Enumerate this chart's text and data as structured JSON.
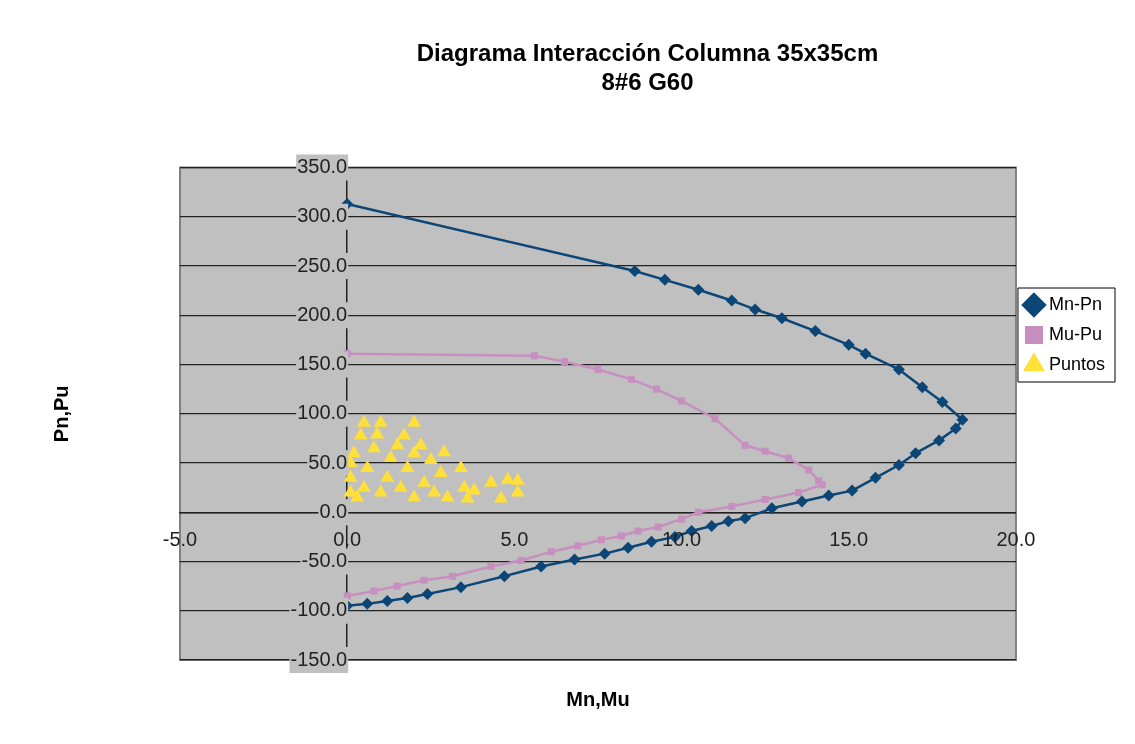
{
  "chart_data": {
    "type": "line",
    "title": "Diagrama Interacción Columna 35x35cm",
    "subtitle": "8#6 G60",
    "xlabel": "Mn,Mu",
    "ylabel": "Pn,Pu",
    "xlim": [
      -5,
      20
    ],
    "ylim": [
      -150,
      350
    ],
    "xticks": [
      {
        "value": -5,
        "label": "-5.0"
      },
      {
        "value": 0,
        "label": "0.0"
      },
      {
        "value": 5,
        "label": "5.0"
      },
      {
        "value": 10,
        "label": "10.0"
      },
      {
        "value": 15,
        "label": "15.0"
      },
      {
        "value": 20,
        "label": "20.0"
      }
    ],
    "yticks": [
      {
        "value": -150,
        "label": "-150.0"
      },
      {
        "value": -100,
        "label": "-100.0"
      },
      {
        "value": -50,
        "label": "-50.0"
      },
      {
        "value": 0,
        "label": "0.0"
      },
      {
        "value": 50,
        "label": "50.0"
      },
      {
        "value": 100,
        "label": "100.0"
      },
      {
        "value": 150,
        "label": "150.0"
      },
      {
        "value": 200,
        "label": "200.0"
      },
      {
        "value": 250,
        "label": "250.0"
      },
      {
        "value": 300,
        "label": "300.0"
      },
      {
        "value": 350,
        "label": "350.0"
      }
    ],
    "grid": "y",
    "legend": "right",
    "series": [
      {
        "name": "Mn-Pn",
        "type": "line",
        "marker": "diamond",
        "color": "#0b4677",
        "x": [
          0,
          8.6,
          9.5,
          10.5,
          11.5,
          12.2,
          13.0,
          14.0,
          15.0,
          15.5,
          16.5,
          17.2,
          17.8,
          18.4,
          18.2,
          17.7,
          17.0,
          16.5,
          15.8,
          15.1,
          14.4,
          13.6,
          12.7,
          11.9,
          11.4,
          10.9,
          10.3,
          9.8,
          9.1,
          8.4,
          7.7,
          6.8,
          5.8,
          4.7,
          3.4,
          2.4,
          1.8,
          1.2,
          0.6,
          0
        ],
        "values": [
          313,
          245,
          236,
          226,
          215,
          206,
          197,
          184,
          170,
          161,
          145,
          127,
          112,
          94,
          85,
          73,
          60,
          48,
          35,
          22,
          17,
          11,
          4,
          -6,
          -9,
          -14,
          -19,
          -25,
          -30,
          -36,
          -42,
          -48,
          -55,
          -65,
          -76,
          -83,
          -87,
          -90,
          -93,
          -95
        ]
      },
      {
        "name": "Mu-Pu",
        "type": "line",
        "marker": "square",
        "color": "#c78fc0",
        "x": [
          0,
          5.6,
          6.5,
          7.5,
          8.5,
          9.25,
          10.0,
          11.0,
          11.9,
          12.5,
          13.2,
          13.8,
          14.1,
          14.2,
          13.5,
          12.5,
          11.5,
          10.5,
          10.0,
          9.3,
          8.7,
          8.2,
          7.6,
          6.9,
          6.1,
          5.2,
          4.3,
          3.15,
          2.3,
          1.5,
          0.8,
          0
        ],
        "values": [
          161,
          159,
          153,
          145,
          135,
          125,
          113,
          95,
          68,
          62,
          55,
          43,
          32,
          28,
          20,
          13,
          6,
          0,
          -7,
          -15,
          -19,
          -24,
          -28,
          -34,
          -40,
          -49,
          -55,
          -65,
          -69,
          -75,
          -80,
          -85
        ]
      },
      {
        "name": "Puntos",
        "type": "scatter",
        "marker": "triangle",
        "color": "#ffdf3a",
        "x": [
          0.5,
          1.0,
          2.0,
          0.4,
          0.9,
          1.7,
          2.2,
          2.9,
          3.4,
          2.5,
          3.5,
          4.3,
          4.8,
          5.1,
          5.1,
          4.6,
          3.6,
          3.8,
          0.1,
          0.1,
          0.1,
          0.2,
          0.5,
          0.6,
          0.8,
          1.0,
          1.2,
          1.3,
          1.6,
          1.8,
          2.0,
          2.3,
          2.6,
          2.8,
          3.0,
          1.5,
          0.3,
          2.0
        ],
        "values": [
          91,
          91,
          91,
          78,
          79,
          78,
          68,
          61,
          45,
          53,
          25,
          30,
          33,
          32,
          20,
          14,
          14,
          22,
          20,
          35,
          50,
          60,
          25,
          45,
          65,
          20,
          35,
          55,
          25,
          45,
          15,
          30,
          20,
          40,
          15,
          68,
          15,
          60
        ]
      }
    ]
  }
}
